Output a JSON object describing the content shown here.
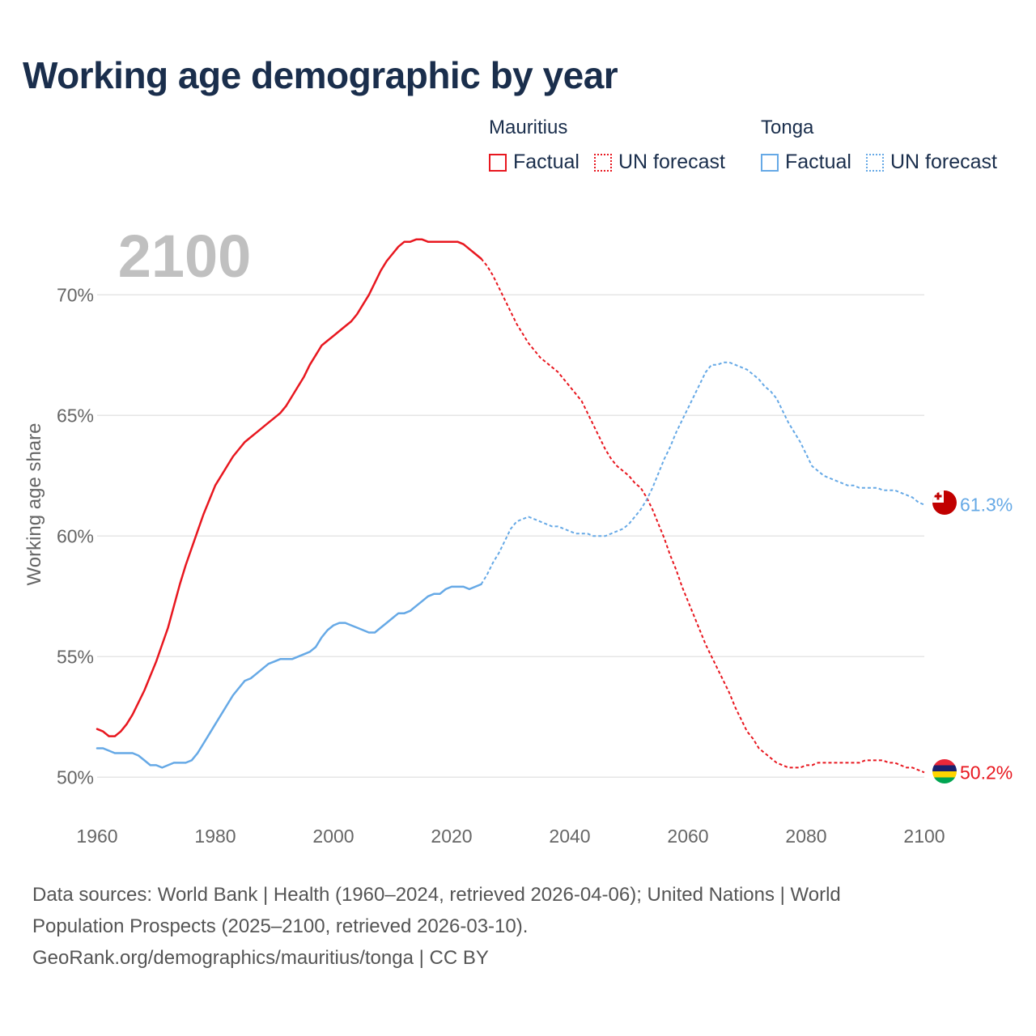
{
  "title": "Working age demographic by year",
  "legend": {
    "groups": [
      {
        "country": "Mauritius",
        "factual_label": "Factual",
        "forecast_label": "UN forecast",
        "color": "#e8171f"
      },
      {
        "country": "Tonga",
        "factual_label": "Factual",
        "forecast_label": "UN forecast",
        "color": "#66a9e6"
      }
    ]
  },
  "footer": {
    "line1": "Data sources: World Bank | Health (1960–2024, retrieved 2026-04-06); United Nations | World",
    "line2": "Population Prospects (2025–2100, retrieved 2026-03-10).",
    "line3": "GeoRank.org/demographics/mauritius/tonga | CC BY"
  },
  "chart_data": {
    "type": "line",
    "title": "Working age demographic by year",
    "year_label": "2100",
    "xlabel": "",
    "ylabel": "Working age share",
    "xlim": [
      1960,
      2100
    ],
    "ylim": [
      48.5,
      73.5
    ],
    "x_ticks": [
      1960,
      1980,
      2000,
      2020,
      2040,
      2060,
      2080,
      2100
    ],
    "y_ticks": [
      50,
      55,
      60,
      65,
      70
    ],
    "y_tick_labels": [
      "50%",
      "55%",
      "60%",
      "65%",
      "70%"
    ],
    "grid": true,
    "forecast_start": 2025,
    "series": [
      {
        "name": "Mauritius",
        "color": "#e8171f",
        "end_label": "50.2%",
        "points": [
          [
            1960,
            52.0
          ],
          [
            1961,
            51.9
          ],
          [
            1962,
            51.7
          ],
          [
            1963,
            51.7
          ],
          [
            1964,
            51.9
          ],
          [
            1965,
            52.2
          ],
          [
            1966,
            52.6
          ],
          [
            1967,
            53.1
          ],
          [
            1968,
            53.6
          ],
          [
            1969,
            54.2
          ],
          [
            1970,
            54.8
          ],
          [
            1971,
            55.5
          ],
          [
            1972,
            56.2
          ],
          [
            1973,
            57.1
          ],
          [
            1974,
            58.0
          ],
          [
            1975,
            58.8
          ],
          [
            1976,
            59.5
          ],
          [
            1977,
            60.2
          ],
          [
            1978,
            60.9
          ],
          [
            1979,
            61.5
          ],
          [
            1980,
            62.1
          ],
          [
            1981,
            62.5
          ],
          [
            1982,
            62.9
          ],
          [
            1983,
            63.3
          ],
          [
            1984,
            63.6
          ],
          [
            1985,
            63.9
          ],
          [
            1986,
            64.1
          ],
          [
            1987,
            64.3
          ],
          [
            1988,
            64.5
          ],
          [
            1989,
            64.7
          ],
          [
            1990,
            64.9
          ],
          [
            1991,
            65.1
          ],
          [
            1992,
            65.4
          ],
          [
            1993,
            65.8
          ],
          [
            1994,
            66.2
          ],
          [
            1995,
            66.6
          ],
          [
            1996,
            67.1
          ],
          [
            1997,
            67.5
          ],
          [
            1998,
            67.9
          ],
          [
            1999,
            68.1
          ],
          [
            2000,
            68.3
          ],
          [
            2001,
            68.5
          ],
          [
            2002,
            68.7
          ],
          [
            2003,
            68.9
          ],
          [
            2004,
            69.2
          ],
          [
            2005,
            69.6
          ],
          [
            2006,
            70.0
          ],
          [
            2007,
            70.5
          ],
          [
            2008,
            71.0
          ],
          [
            2009,
            71.4
          ],
          [
            2010,
            71.7
          ],
          [
            2011,
            72.0
          ],
          [
            2012,
            72.2
          ],
          [
            2013,
            72.2
          ],
          [
            2014,
            72.3
          ],
          [
            2015,
            72.3
          ],
          [
            2016,
            72.2
          ],
          [
            2017,
            72.2
          ],
          [
            2018,
            72.2
          ],
          [
            2019,
            72.2
          ],
          [
            2020,
            72.2
          ],
          [
            2021,
            72.2
          ],
          [
            2022,
            72.1
          ],
          [
            2023,
            71.9
          ],
          [
            2024,
            71.7
          ],
          [
            2025,
            71.5
          ],
          [
            2026,
            71.2
          ],
          [
            2027,
            70.8
          ],
          [
            2028,
            70.3
          ],
          [
            2029,
            69.8
          ],
          [
            2030,
            69.3
          ],
          [
            2031,
            68.8
          ],
          [
            2032,
            68.4
          ],
          [
            2033,
            68.0
          ],
          [
            2034,
            67.7
          ],
          [
            2035,
            67.4
          ],
          [
            2036,
            67.2
          ],
          [
            2037,
            67.0
          ],
          [
            2038,
            66.8
          ],
          [
            2039,
            66.5
          ],
          [
            2040,
            66.2
          ],
          [
            2041,
            65.9
          ],
          [
            2042,
            65.6
          ],
          [
            2043,
            65.1
          ],
          [
            2044,
            64.6
          ],
          [
            2045,
            64.1
          ],
          [
            2046,
            63.6
          ],
          [
            2047,
            63.2
          ],
          [
            2048,
            62.9
          ],
          [
            2049,
            62.7
          ],
          [
            2050,
            62.5
          ],
          [
            2051,
            62.2
          ],
          [
            2052,
            62.0
          ],
          [
            2053,
            61.6
          ],
          [
            2054,
            61.1
          ],
          [
            2055,
            60.5
          ],
          [
            2056,
            59.9
          ],
          [
            2057,
            59.2
          ],
          [
            2058,
            58.6
          ],
          [
            2059,
            57.9
          ],
          [
            2060,
            57.3
          ],
          [
            2061,
            56.7
          ],
          [
            2062,
            56.1
          ],
          [
            2063,
            55.5
          ],
          [
            2064,
            55.0
          ],
          [
            2065,
            54.5
          ],
          [
            2066,
            54.0
          ],
          [
            2067,
            53.5
          ],
          [
            2068,
            52.9
          ],
          [
            2069,
            52.4
          ],
          [
            2070,
            51.9
          ],
          [
            2071,
            51.6
          ],
          [
            2072,
            51.2
          ],
          [
            2073,
            51.0
          ],
          [
            2074,
            50.8
          ],
          [
            2075,
            50.6
          ],
          [
            2076,
            50.5
          ],
          [
            2077,
            50.4
          ],
          [
            2078,
            50.4
          ],
          [
            2079,
            50.4
          ],
          [
            2080,
            50.5
          ],
          [
            2081,
            50.5
          ],
          [
            2082,
            50.6
          ],
          [
            2083,
            50.6
          ],
          [
            2084,
            50.6
          ],
          [
            2085,
            50.6
          ],
          [
            2086,
            50.6
          ],
          [
            2087,
            50.6
          ],
          [
            2088,
            50.6
          ],
          [
            2089,
            50.6
          ],
          [
            2090,
            50.7
          ],
          [
            2091,
            50.7
          ],
          [
            2092,
            50.7
          ],
          [
            2093,
            50.7
          ],
          [
            2094,
            50.6
          ],
          [
            2095,
            50.6
          ],
          [
            2096,
            50.5
          ],
          [
            2097,
            50.4
          ],
          [
            2098,
            50.4
          ],
          [
            2099,
            50.3
          ],
          [
            2100,
            50.2
          ]
        ]
      },
      {
        "name": "Tonga",
        "color": "#66a9e6",
        "end_label": "61.3%",
        "points": [
          [
            1960,
            51.2
          ],
          [
            1961,
            51.2
          ],
          [
            1962,
            51.1
          ],
          [
            1963,
            51.0
          ],
          [
            1964,
            51.0
          ],
          [
            1965,
            51.0
          ],
          [
            1966,
            51.0
          ],
          [
            1967,
            50.9
          ],
          [
            1968,
            50.7
          ],
          [
            1969,
            50.5
          ],
          [
            1970,
            50.5
          ],
          [
            1971,
            50.4
          ],
          [
            1972,
            50.5
          ],
          [
            1973,
            50.6
          ],
          [
            1974,
            50.6
          ],
          [
            1975,
            50.6
          ],
          [
            1976,
            50.7
          ],
          [
            1977,
            51.0
          ],
          [
            1978,
            51.4
          ],
          [
            1979,
            51.8
          ],
          [
            1980,
            52.2
          ],
          [
            1981,
            52.6
          ],
          [
            1982,
            53.0
          ],
          [
            1983,
            53.4
          ],
          [
            1984,
            53.7
          ],
          [
            1985,
            54.0
          ],
          [
            1986,
            54.1
          ],
          [
            1987,
            54.3
          ],
          [
            1988,
            54.5
          ],
          [
            1989,
            54.7
          ],
          [
            1990,
            54.8
          ],
          [
            1991,
            54.9
          ],
          [
            1992,
            54.9
          ],
          [
            1993,
            54.9
          ],
          [
            1994,
            55.0
          ],
          [
            1995,
            55.1
          ],
          [
            1996,
            55.2
          ],
          [
            1997,
            55.4
          ],
          [
            1998,
            55.8
          ],
          [
            1999,
            56.1
          ],
          [
            2000,
            56.3
          ],
          [
            2001,
            56.4
          ],
          [
            2002,
            56.4
          ],
          [
            2003,
            56.3
          ],
          [
            2004,
            56.2
          ],
          [
            2005,
            56.1
          ],
          [
            2006,
            56.0
          ],
          [
            2007,
            56.0
          ],
          [
            2008,
            56.2
          ],
          [
            2009,
            56.4
          ],
          [
            2010,
            56.6
          ],
          [
            2011,
            56.8
          ],
          [
            2012,
            56.8
          ],
          [
            2013,
            56.9
          ],
          [
            2014,
            57.1
          ],
          [
            2015,
            57.3
          ],
          [
            2016,
            57.5
          ],
          [
            2017,
            57.6
          ],
          [
            2018,
            57.6
          ],
          [
            2019,
            57.8
          ],
          [
            2020,
            57.9
          ],
          [
            2021,
            57.9
          ],
          [
            2022,
            57.9
          ],
          [
            2023,
            57.8
          ],
          [
            2024,
            57.9
          ],
          [
            2025,
            58.0
          ],
          [
            2026,
            58.4
          ],
          [
            2027,
            58.9
          ],
          [
            2028,
            59.3
          ],
          [
            2029,
            59.8
          ],
          [
            2030,
            60.3
          ],
          [
            2031,
            60.6
          ],
          [
            2032,
            60.7
          ],
          [
            2033,
            60.8
          ],
          [
            2034,
            60.7
          ],
          [
            2035,
            60.6
          ],
          [
            2036,
            60.5
          ],
          [
            2037,
            60.4
          ],
          [
            2038,
            60.4
          ],
          [
            2039,
            60.3
          ],
          [
            2040,
            60.2
          ],
          [
            2041,
            60.1
          ],
          [
            2042,
            60.1
          ],
          [
            2043,
            60.1
          ],
          [
            2044,
            60.0
          ],
          [
            2045,
            60.0
          ],
          [
            2046,
            60.0
          ],
          [
            2047,
            60.1
          ],
          [
            2048,
            60.2
          ],
          [
            2049,
            60.3
          ],
          [
            2050,
            60.5
          ],
          [
            2051,
            60.8
          ],
          [
            2052,
            61.1
          ],
          [
            2053,
            61.5
          ],
          [
            2054,
            62.0
          ],
          [
            2055,
            62.6
          ],
          [
            2056,
            63.2
          ],
          [
            2057,
            63.7
          ],
          [
            2058,
            64.3
          ],
          [
            2059,
            64.8
          ],
          [
            2060,
            65.3
          ],
          [
            2061,
            65.8
          ],
          [
            2062,
            66.3
          ],
          [
            2063,
            66.8
          ],
          [
            2064,
            67.1
          ],
          [
            2065,
            67.1
          ],
          [
            2066,
            67.2
          ],
          [
            2067,
            67.2
          ],
          [
            2068,
            67.1
          ],
          [
            2069,
            67.0
          ],
          [
            2070,
            66.9
          ],
          [
            2071,
            66.7
          ],
          [
            2072,
            66.5
          ],
          [
            2073,
            66.2
          ],
          [
            2074,
            66.0
          ],
          [
            2075,
            65.7
          ],
          [
            2076,
            65.2
          ],
          [
            2077,
            64.7
          ],
          [
            2078,
            64.3
          ],
          [
            2079,
            63.9
          ],
          [
            2080,
            63.4
          ],
          [
            2081,
            62.9
          ],
          [
            2082,
            62.7
          ],
          [
            2083,
            62.5
          ],
          [
            2084,
            62.4
          ],
          [
            2085,
            62.3
          ],
          [
            2086,
            62.2
          ],
          [
            2087,
            62.1
          ],
          [
            2088,
            62.1
          ],
          [
            2089,
            62.0
          ],
          [
            2090,
            62.0
          ],
          [
            2091,
            62.0
          ],
          [
            2092,
            62.0
          ],
          [
            2093,
            61.9
          ],
          [
            2094,
            61.9
          ],
          [
            2095,
            61.9
          ],
          [
            2096,
            61.8
          ],
          [
            2097,
            61.7
          ],
          [
            2098,
            61.6
          ],
          [
            2099,
            61.4
          ],
          [
            2100,
            61.3
          ]
        ]
      }
    ]
  }
}
